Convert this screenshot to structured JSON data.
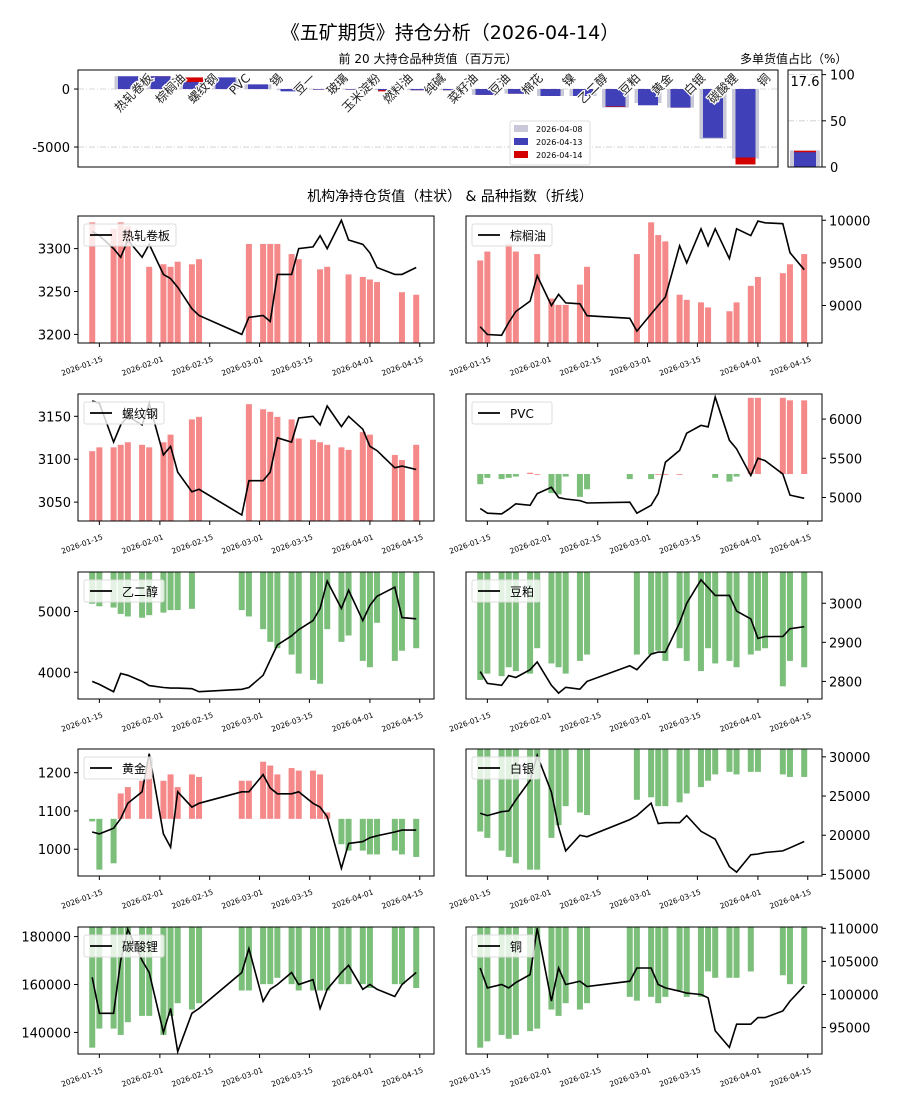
{
  "title": "《五矿期货》持仓分析（2026-04-14）",
  "section_title": "机构净持仓货值（柱状） & 品种指数（折线）",
  "colors": {
    "d0408": "#c8c8d8",
    "d0413": "#4040b8",
    "d0414": "#d40000",
    "long": "#f47c7c",
    "short": "#6db86d",
    "line": "#000000"
  },
  "chart_data": [
    {
      "type": "bar",
      "title": "前 20 大持仓品种货值（百万元）",
      "categories": [
        "热轧卷板",
        "棕榈油",
        "螺纹钢",
        "PVC",
        "锡",
        "豆一",
        "玻璃",
        "玉米淀粉",
        "燃料油",
        "纯碱",
        "菜籽油",
        "豆油",
        "棉花",
        "镍",
        "乙二醇",
        "豆粕",
        "黄金",
        "白银",
        "碳酸锂",
        "铜"
      ],
      "ylim": [
        -6720,
        1640
      ],
      "yticks": [
        0,
        -5000
      ],
      "legend": "upper-center",
      "grid": "y dash-dot",
      "series": [
        {
          "name": "2026-04-08",
          "values": [
            1100,
            1000,
            800,
            1000,
            400,
            -100,
            -50,
            -50,
            -100,
            -100,
            -100,
            -500,
            -400,
            -600,
            -600,
            -1600,
            -1200,
            -1600,
            -4300,
            -6000
          ]
        },
        {
          "name": "2026-04-14",
          "values": [
            1000,
            1100,
            1000,
            900,
            300,
            -150,
            -50,
            -50,
            -200,
            -100,
            -100,
            -500,
            -400,
            -600,
            -600,
            -1550,
            -1350,
            -1600,
            -4100,
            -6500
          ]
        },
        {
          "name": "2026-04-13",
          "values": [
            1100,
            1100,
            600,
            1000,
            400,
            -200,
            -50,
            -50,
            -100,
            -100,
            -100,
            -500,
            -400,
            -600,
            -600,
            -1500,
            -1400,
            -1600,
            -4200,
            -5900
          ]
        }
      ]
    },
    {
      "type": "bar",
      "title": "多单货值占比（%）",
      "value_label": "17.6",
      "ylim": [
        0,
        105
      ],
      "yticks": [
        0,
        50,
        100
      ],
      "series": [
        {
          "name": "2026-04-08",
          "values": [
            18
          ]
        },
        {
          "name": "2026-04-14",
          "values": [
            17.6
          ]
        },
        {
          "name": "2026-04-13",
          "values": [
            16
          ]
        }
      ]
    },
    {
      "type": "bar+line",
      "dates": [
        "2026-01-13",
        "2026-01-15",
        "2026-01-19",
        "2026-01-21",
        "2026-01-23",
        "2026-01-27",
        "2026-01-29",
        "2026-02-02",
        "2026-02-04",
        "2026-02-06",
        "2026-02-10",
        "2026-02-12",
        "2026-02-24",
        "2026-02-26",
        "2026-03-02",
        "2026-03-04",
        "2026-03-06",
        "2026-03-10",
        "2026-03-12",
        "2026-03-16",
        "2026-03-18",
        "2026-03-20",
        "2026-03-24",
        "2026-03-26",
        "2026-03-30",
        "2026-04-01",
        "2026-04-03",
        "2026-04-08",
        "2026-04-10",
        "2026-04-14"
      ],
      "xticks": [
        "2026-01-15",
        "2026-02-01",
        "2026-02-15",
        "2026-03-01",
        "2026-03-15",
        "2026-04-01",
        "2026-04-15"
      ],
      "xlim": [
        "2026-01-09",
        "2026-04-19"
      ],
      "legend": "upper-left",
      "panels": [
        {
          "name": "热轧卷板",
          "ylim": [
            3190,
            3338
          ],
          "yticks": [
            3200,
            3250,
            3300
          ],
          "bar_ylim": [
            0,
            100
          ],
          "prices": [
            3320,
            3315,
            3300,
            3290,
            3310,
            3290,
            3305,
            3270,
            3265,
            3255,
            3230,
            3222,
            3200,
            3220,
            3222,
            3215,
            3270,
            3270,
            3300,
            3302,
            3315,
            3300,
            3333,
            3310,
            3305,
            3295,
            3278,
            3270,
            3270,
            3278
          ],
          "bars": [
            95,
            null,
            90,
            95,
            92,
            null,
            60,
            62,
            60,
            64,
            62,
            66,
            null,
            78,
            78,
            78,
            78,
            70,
            66,
            null,
            58,
            60,
            null,
            54,
            52,
            50,
            48,
            null,
            40,
            38
          ]
        },
        {
          "name": "棕榈油",
          "ylim": [
            8560,
            10050
          ],
          "yticks": [
            9000,
            9500,
            10000
          ],
          "bar_ylim": [
            0,
            100
          ],
          "prices": [
            8750,
            8660,
            8650,
            8800,
            8930,
            9050,
            9350,
            9000,
            9130,
            9030,
            9020,
            8880,
            8850,
            8700,
            8900,
            9000,
            9100,
            9700,
            9500,
            9900,
            9700,
            9900,
            9550,
            9900,
            9820,
            9990,
            9970,
            9960,
            9620,
            9420
          ],
          "bars": [
            65,
            72,
            null,
            78,
            72,
            null,
            70,
            35,
            30,
            30,
            46,
            60,
            null,
            70,
            95,
            85,
            80,
            38,
            34,
            32,
            28,
            null,
            25,
            32,
            45,
            52,
            null,
            55,
            62,
            70
          ]
        },
        {
          "name": "螺纹钢",
          "ylim": [
            3028,
            3176
          ],
          "yticks": [
            3050,
            3100,
            3150
          ],
          "bar_ylim": [
            0,
            100
          ],
          "prices": [
            3168,
            3165,
            3120,
            3140,
            3150,
            3140,
            3165,
            3105,
            3115,
            3085,
            3062,
            3065,
            3035,
            3075,
            3075,
            3085,
            3125,
            3120,
            3148,
            3150,
            3140,
            3162,
            3138,
            3150,
            3135,
            3115,
            3110,
            3090,
            3092,
            3088
          ],
          "bars": [
            55,
            58,
            58,
            60,
            62,
            60,
            58,
            62,
            68,
            null,
            80,
            82,
            null,
            92,
            88,
            86,
            82,
            80,
            65,
            64,
            62,
            60,
            58,
            56,
            70,
            68,
            null,
            52,
            48,
            60
          ]
        },
        {
          "name": "PVC",
          "ylim": [
            4700,
            6320
          ],
          "yticks": [
            5000,
            5500,
            6000
          ],
          "bar_ylim": [
            -37,
            63
          ],
          "prices": [
            4860,
            4800,
            4790,
            4850,
            4920,
            4900,
            5050,
            5130,
            5000,
            4980,
            4960,
            4930,
            4940,
            4800,
            4900,
            5050,
            5450,
            5600,
            5820,
            5920,
            5900,
            6280,
            5730,
            5620,
            5280,
            5500,
            5470,
            5300,
            5030,
            4990
          ],
          "bars": [
            -8,
            -3,
            -4,
            -3,
            -2,
            1,
            0,
            -15,
            -16,
            -2,
            -18,
            -12,
            -4,
            null,
            -4,
            0,
            0,
            0,
            null,
            null,
            null,
            -3,
            -6,
            -2,
            60,
            60,
            null,
            60,
            58,
            58
          ]
        },
        {
          "name": "乙二醇",
          "ylim": [
            3560,
            5650
          ],
          "yticks": [
            4000,
            5000
          ],
          "bar_ylim": [
            -100,
            0
          ],
          "prices": [
            3850,
            3800,
            3680,
            3980,
            3950,
            3850,
            3780,
            3750,
            3740,
            3740,
            3730,
            3680,
            3720,
            3750,
            3950,
            4200,
            4450,
            4600,
            4700,
            4850,
            5050,
            5500,
            5050,
            5350,
            4850,
            5100,
            5250,
            5400,
            4900,
            4880
          ],
          "bars": [
            -25,
            -27,
            -28,
            -33,
            -35,
            -36,
            -34,
            -32,
            -30,
            -30,
            -29,
            null,
            -30,
            -35,
            -45,
            -55,
            -60,
            -65,
            -80,
            -85,
            -88,
            -45,
            -55,
            -50,
            -70,
            -75,
            -40,
            -70,
            -62,
            -60
          ]
        },
        {
          "name": "豆粕",
          "ylim": [
            2755,
            3080
          ],
          "yticks": [
            2800,
            2900,
            3000
          ],
          "bar_ylim": [
            -100,
            0
          ],
          "prices": [
            2825,
            2795,
            2790,
            2815,
            2810,
            2830,
            2850,
            2790,
            2770,
            2785,
            2780,
            2800,
            2840,
            2830,
            2870,
            2875,
            2875,
            2950,
            3000,
            3060,
            3040,
            3020,
            3020,
            2980,
            2960,
            2910,
            2915,
            2915,
            2935,
            2940
          ],
          "bars": [
            -85,
            -80,
            -82,
            -75,
            -78,
            -80,
            -60,
            -72,
            -75,
            -80,
            -70,
            -65,
            null,
            -65,
            -65,
            -62,
            -70,
            -60,
            -70,
            -78,
            -60,
            -72,
            -70,
            -75,
            -65,
            -62,
            -60,
            -90,
            -70,
            -75
          ]
        },
        {
          "name": "黄金",
          "ylim": [
            930,
            1262
          ],
          "yticks": [
            1000,
            1100,
            1200
          ],
          "bar_ylim": [
            -45,
            55
          ],
          "prices": [
            1045,
            1040,
            1055,
            1080,
            1120,
            1150,
            1250,
            1040,
            1005,
            1150,
            1110,
            1120,
            1150,
            1150,
            1195,
            1160,
            1145,
            1145,
            1150,
            1120,
            1110,
            1085,
            950,
            1015,
            1020,
            1030,
            1035,
            1045,
            1050,
            1050
          ],
          "bars": [
            -2,
            -40,
            -35,
            20,
            25,
            30,
            45,
            30,
            35,
            25,
            35,
            33,
            30,
            30,
            45,
            42,
            35,
            40,
            38,
            38,
            35,
            5,
            -20,
            -25,
            -25,
            -28,
            -28,
            -25,
            -28,
            -30
          ]
        },
        {
          "name": "白银",
          "ylim": [
            14800,
            31000
          ],
          "yticks": [
            15000,
            20000,
            25000,
            30000
          ],
          "bar_ylim": [
            -100,
            0
          ],
          "prices": [
            22800,
            22500,
            23000,
            23100,
            24500,
            27000,
            30200,
            25500,
            21000,
            18000,
            20000,
            19800,
            22000,
            22500,
            24100,
            21500,
            21600,
            21600,
            22500,
            20500,
            20000,
            19500,
            16000,
            15300,
            17500,
            17600,
            17800,
            18000,
            18400,
            19200
          ],
          "bars": [
            -65,
            -70,
            -80,
            -85,
            -90,
            -95,
            -95,
            -70,
            -60,
            -45,
            -50,
            -52,
            null,
            -40,
            -38,
            -45,
            -45,
            -42,
            -35,
            -30,
            -25,
            -20,
            -18,
            -20,
            -18,
            -18,
            null,
            -20,
            -22,
            -22
          ]
        },
        {
          "name": "碳酸锂",
          "ylim": [
            131000,
            184000
          ],
          "yticks": [
            140000,
            160000,
            180000
          ],
          "bar_ylim": [
            -100,
            0
          ],
          "prices": [
            163000,
            148000,
            148000,
            170000,
            183000,
            170000,
            165000,
            140000,
            150000,
            132000,
            148000,
            150000,
            165000,
            175000,
            153000,
            158000,
            160000,
            165000,
            160000,
            162000,
            150000,
            158000,
            165000,
            168000,
            158000,
            160000,
            158000,
            155000,
            160000,
            165000
          ],
          "bars": [
            -95,
            -80,
            -80,
            -85,
            -75,
            -70,
            -70,
            -85,
            -70,
            -60,
            -65,
            -60,
            -50,
            -50,
            -45,
            -45,
            -40,
            -45,
            -50,
            -50,
            -50,
            -50,
            -45,
            -45,
            -45,
            -48,
            null,
            -45,
            -45,
            -48
          ]
        },
        {
          "name": "铜",
          "ylim": [
            91000,
            110200
          ],
          "yticks": [
            95000,
            100000,
            105000,
            110000
          ],
          "bar_ylim": [
            -100,
            0
          ],
          "prices": [
            104000,
            101000,
            101500,
            101000,
            101800,
            103000,
            110000,
            99000,
            104000,
            101500,
            102000,
            101200,
            102000,
            104000,
            104000,
            101500,
            101000,
            100500,
            100200,
            100000,
            99500,
            94500,
            92000,
            95500,
            95500,
            96500,
            96500,
            97500,
            99000,
            101300
          ],
          "bars": [
            -95,
            -90,
            -85,
            -88,
            -85,
            -82,
            -80,
            -65,
            -70,
            -60,
            -65,
            -60,
            -55,
            -58,
            -55,
            -60,
            -55,
            -50,
            -55,
            -55,
            -35,
            -40,
            -40,
            -40,
            -35,
            null,
            null,
            -38,
            -45,
            -45
          ]
        }
      ]
    }
  ]
}
